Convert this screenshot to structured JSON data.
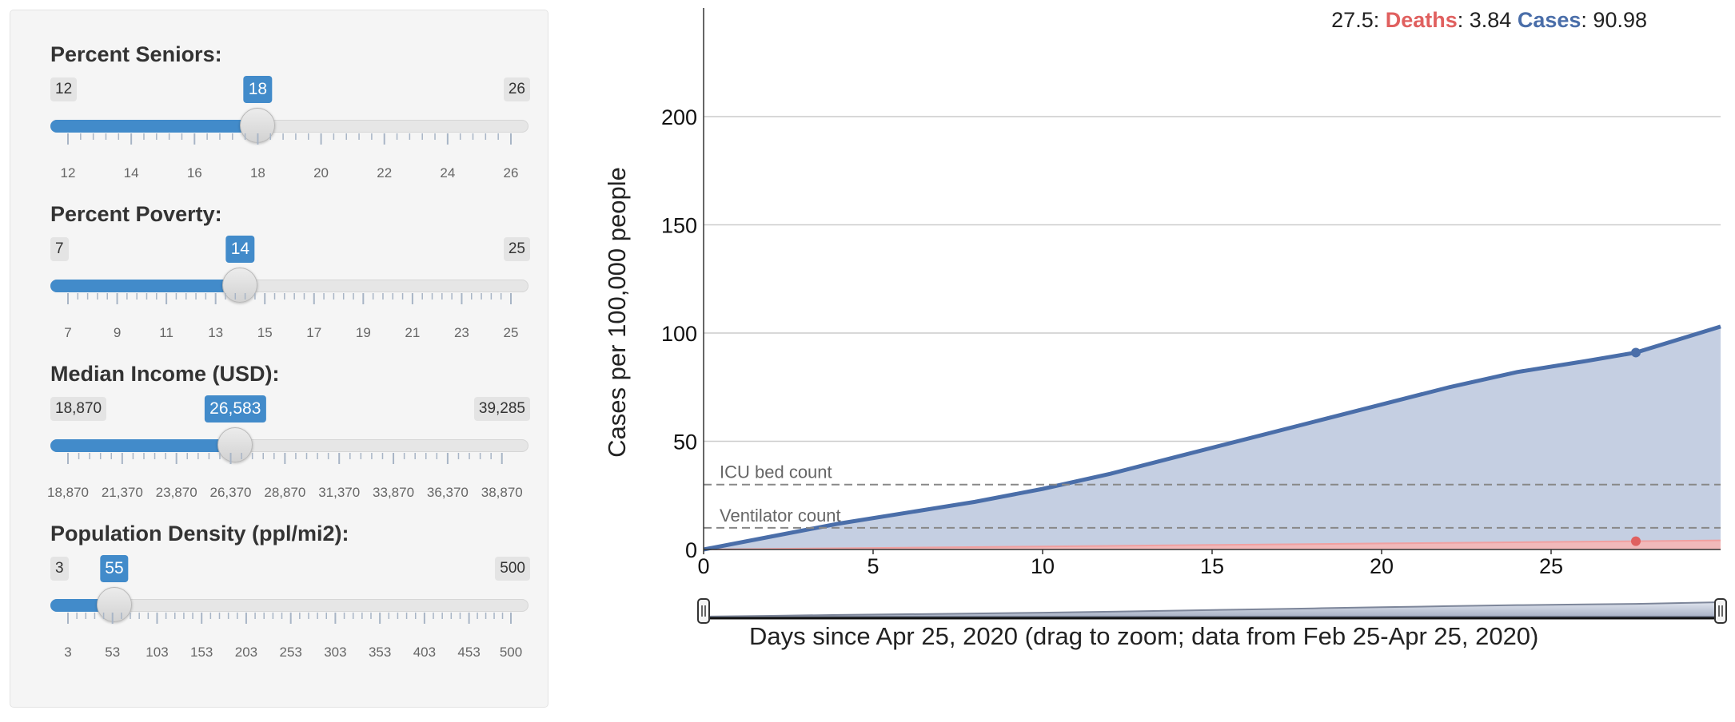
{
  "sliders": [
    {
      "label": "Percent Seniors:",
      "min_label": "12",
      "max_label": "26",
      "value_label": "18",
      "min": 12,
      "max": 26,
      "value": 18,
      "tick_labels": [
        "12",
        "14",
        "16",
        "18",
        "20",
        "22",
        "24",
        "26"
      ],
      "tick_values": [
        12,
        14,
        16,
        18,
        20,
        22,
        24,
        26
      ]
    },
    {
      "label": "Percent Poverty:",
      "min_label": "7",
      "max_label": "25",
      "value_label": "14",
      "min": 7,
      "max": 25,
      "value": 14,
      "tick_labels": [
        "7",
        "9",
        "11",
        "13",
        "15",
        "17",
        "19",
        "21",
        "23",
        "25"
      ],
      "tick_values": [
        7,
        9,
        11,
        13,
        15,
        17,
        19,
        21,
        23,
        25
      ]
    },
    {
      "label": "Median Income (USD):",
      "min_label": "18,870",
      "max_label": "39,285",
      "value_label": "26,583",
      "min": 18870,
      "max": 39285,
      "value": 26583,
      "tick_labels": [
        "18,870",
        "21,370",
        "23,870",
        "26,370",
        "28,870",
        "31,370",
        "33,870",
        "36,370",
        "38,870"
      ],
      "tick_values": [
        18870,
        21370,
        23870,
        26370,
        28870,
        31370,
        33870,
        36370,
        38870
      ]
    },
    {
      "label": "Population Density (ppl/mi2):",
      "min_label": "3",
      "max_label": "500",
      "value_label": "55",
      "min": 3,
      "max": 500,
      "value": 55,
      "tick_labels": [
        "3",
        "53",
        "103",
        "153",
        "203",
        "253",
        "303",
        "353",
        "403",
        "453",
        "500"
      ],
      "tick_values": [
        3,
        53,
        103,
        153,
        203,
        253,
        303,
        353,
        403,
        453,
        500
      ]
    }
  ],
  "readout": {
    "x": "27.5:",
    "deaths_label": "Deaths",
    "deaths_value": ": 3.84",
    "cases_label": "Cases",
    "cases_value": ": 90.98"
  },
  "colors": {
    "accent": "#428bca",
    "cases": "#4a6ea9",
    "cases_fill": "#c5cfe2",
    "deaths": "#e0605f",
    "deaths_fill": "#f1b9ba"
  },
  "chart_data": {
    "type": "area",
    "xlabel": "Days since Apr 25, 2020 (drag to zoom; data from Feb 25-Apr 25, 2020)",
    "ylabel": "Cases per 100,000 people",
    "xlim": [
      0,
      30
    ],
    "ylim": [
      0,
      250
    ],
    "x_ticks": [
      0,
      5,
      10,
      15,
      20,
      25
    ],
    "y_ticks": [
      0,
      50,
      100,
      150,
      200
    ],
    "grid": true,
    "series": [
      {
        "name": "Cases",
        "x": [
          0,
          2,
          4,
          6,
          8,
          10,
          12,
          14,
          16,
          18,
          20,
          22,
          24,
          26,
          27.5,
          30
        ],
        "values": [
          0,
          6,
          12,
          17,
          22,
          28,
          35,
          43,
          51,
          59,
          67,
          75,
          82,
          87,
          90.98,
          103
        ]
      },
      {
        "name": "Deaths",
        "x": [
          0,
          5,
          10,
          15,
          20,
          25,
          27.5,
          30
        ],
        "values": [
          0,
          0.7,
          1.4,
          2.1,
          2.8,
          3.5,
          3.84,
          4.2
        ]
      }
    ],
    "reference_lines": [
      {
        "label": "ICU bed count",
        "value": 30
      },
      {
        "label": "Ventilator count",
        "value": 10
      }
    ],
    "hover_point": {
      "x": 27.5,
      "deaths": 3.84,
      "cases": 90.98
    }
  }
}
